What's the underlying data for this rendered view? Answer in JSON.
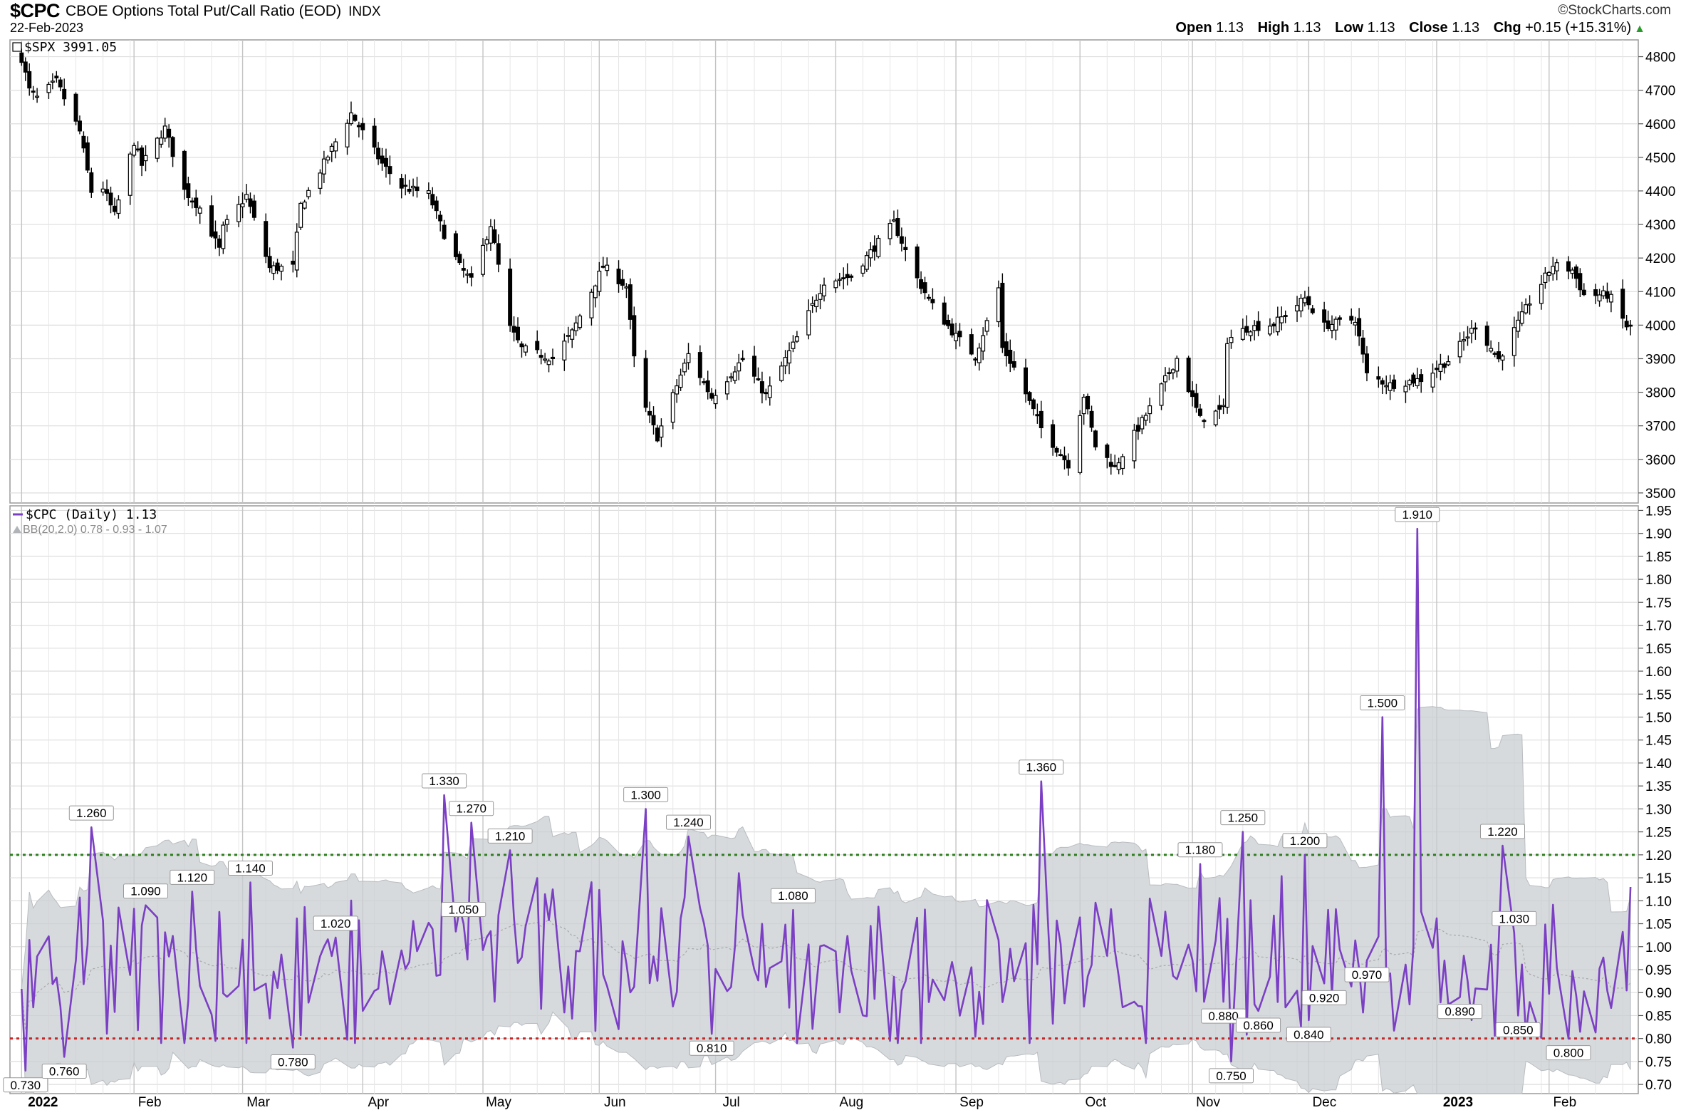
{
  "header": {
    "symbol": "$CPC",
    "description": "CBOE Options Total Put/Call Ratio (EOD)",
    "exchange": "INDX",
    "date": "22-Feb-2023",
    "brand": "©StockCharts.com",
    "ohlc": {
      "open_label": "Open",
      "open": "1.13",
      "high_label": "High",
      "high": "1.13",
      "low_label": "Low",
      "low": "1.13",
      "close_label": "Close",
      "close": "1.13",
      "chg_label": "Chg",
      "chg": "+0.15 (+15.31%)",
      "chg_arrow": "▲"
    }
  },
  "chart_data": [
    {
      "type": "candlestick",
      "legend": "$SPX 3991.05",
      "ylim": [
        3470,
        4850
      ],
      "yticks": [
        3500,
        3600,
        3700,
        3800,
        3900,
        4000,
        4100,
        4200,
        4300,
        4400,
        4500,
        4600,
        4700,
        4800
      ],
      "ytick_labels": [
        "3500",
        "3600",
        "3700",
        "3800",
        "3900",
        "4000",
        "4100",
        "4200",
        "4300",
        "4400",
        "4500",
        "4600",
        "4700",
        "4800"
      ],
      "close_anchors": [
        [
          "2022-01-03",
          4796
        ],
        [
          "2022-01-05",
          4700
        ],
        [
          "2022-01-07",
          4677
        ],
        [
          "2022-01-12",
          4726
        ],
        [
          "2022-01-18",
          4577
        ],
        [
          "2022-01-21",
          4398
        ],
        [
          "2022-01-24",
          4410
        ],
        [
          "2022-01-27",
          4327
        ],
        [
          "2022-02-01",
          4546
        ],
        [
          "2022-02-03",
          4477
        ],
        [
          "2022-02-09",
          4587
        ],
        [
          "2022-02-14",
          4401
        ],
        [
          "2022-02-18",
          4349
        ],
        [
          "2022-02-23",
          4225
        ],
        [
          "2022-02-24",
          4288
        ],
        [
          "2022-03-02",
          4386
        ],
        [
          "2022-03-08",
          4170
        ],
        [
          "2022-03-14",
          4173
        ],
        [
          "2022-03-16",
          4357
        ],
        [
          "2022-03-21",
          4461
        ],
        [
          "2022-03-29",
          4631
        ],
        [
          "2022-04-06",
          4481
        ],
        [
          "2022-04-11",
          4412
        ],
        [
          "2022-04-18",
          4391
        ],
        [
          "2022-04-22",
          4271
        ],
        [
          "2022-04-26",
          4175
        ],
        [
          "2022-04-29",
          4131
        ],
        [
          "2022-05-04",
          4300
        ],
        [
          "2022-05-09",
          3991
        ],
        [
          "2022-05-12",
          3930
        ],
        [
          "2022-05-20",
          3901
        ],
        [
          "2022-05-25",
          3978
        ],
        [
          "2022-06-02",
          4176
        ],
        [
          "2022-06-08",
          4115
        ],
        [
          "2022-06-10",
          3900
        ],
        [
          "2022-06-13",
          3750
        ],
        [
          "2022-06-16",
          3667
        ],
        [
          "2022-06-24",
          3912
        ],
        [
          "2022-06-30",
          3785
        ],
        [
          "2022-07-08",
          3899
        ],
        [
          "2022-07-14",
          3790
        ],
        [
          "2022-07-22",
          3962
        ],
        [
          "2022-07-29",
          4130
        ],
        [
          "2022-08-05",
          4145
        ],
        [
          "2022-08-16",
          4305
        ],
        [
          "2022-08-22",
          4138
        ],
        [
          "2022-08-26",
          4058
        ],
        [
          "2022-09-01",
          3967
        ],
        [
          "2022-09-06",
          3908
        ],
        [
          "2022-09-12",
          4110
        ],
        [
          "2022-09-13",
          3932
        ],
        [
          "2022-09-16",
          3873
        ],
        [
          "2022-09-23",
          3693
        ],
        [
          "2022-09-30",
          3586
        ],
        [
          "2022-10-04",
          3791
        ],
        [
          "2022-10-07",
          3640
        ],
        [
          "2022-10-12",
          3577
        ],
        [
          "2022-10-21",
          3752
        ],
        [
          "2022-10-28",
          3901
        ],
        [
          "2022-11-03",
          3720
        ],
        [
          "2022-11-09",
          3749
        ],
        [
          "2022-11-10",
          3956
        ],
        [
          "2022-11-15",
          3991
        ],
        [
          "2022-11-22",
          4003
        ],
        [
          "2022-11-30",
          4080
        ],
        [
          "2022-12-05",
          3998
        ],
        [
          "2022-12-13",
          4019
        ],
        [
          "2022-12-16",
          3852
        ],
        [
          "2022-12-22",
          3822
        ],
        [
          "2022-12-30",
          3839
        ],
        [
          "2023-01-06",
          3895
        ],
        [
          "2023-01-13",
          3999
        ],
        [
          "2023-01-19",
          3898
        ],
        [
          "2023-01-27",
          4070
        ],
        [
          "2023-02-02",
          4179
        ],
        [
          "2023-02-07",
          4164
        ],
        [
          "2023-02-10",
          4090
        ],
        [
          "2023-02-16",
          4090
        ],
        [
          "2023-02-17",
          4079
        ],
        [
          "2023-02-21",
          3997
        ],
        [
          "2023-02-22",
          3991
        ]
      ]
    },
    {
      "type": "line",
      "legend": "$CPC (Daily) 1.13",
      "bb_legend": "BB(20,2.0) 0.78 - 0.93 - 1.07",
      "ylim": [
        0.68,
        1.96
      ],
      "yticks": [
        0.7,
        0.75,
        0.8,
        0.85,
        0.9,
        0.95,
        1.0,
        1.05,
        1.1,
        1.15,
        1.2,
        1.25,
        1.3,
        1.35,
        1.4,
        1.45,
        1.5,
        1.55,
        1.6,
        1.65,
        1.7,
        1.75,
        1.8,
        1.85,
        1.9,
        1.95
      ],
      "ytick_labels": [
        "0.70",
        "0.75",
        "0.80",
        "0.85",
        "0.90",
        "0.95",
        "1.00",
        "1.05",
        "1.10",
        "1.15",
        "1.20",
        "1.25",
        "1.30",
        "1.35",
        "1.40",
        "1.45",
        "1.50",
        "1.55",
        "1.60",
        "1.65",
        "1.70",
        "1.75",
        "1.80",
        "1.85",
        "1.90",
        "1.95"
      ],
      "reference_lines": [
        {
          "y": 1.2,
          "color": "#2e7d1e"
        },
        {
          "y": 0.8,
          "color": "#c62828"
        }
      ],
      "peak_anchors": [
        [
          "2022-01-04",
          0.73
        ],
        [
          "2022-01-14",
          0.76
        ],
        [
          "2022-01-21",
          1.26
        ],
        [
          "2022-02-04",
          1.09
        ],
        [
          "2022-02-16",
          1.12
        ],
        [
          "2022-03-03",
          1.14
        ],
        [
          "2022-03-14",
          0.78
        ],
        [
          "2022-03-25",
          1.02
        ],
        [
          "2022-04-22",
          1.33
        ],
        [
          "2022-04-27",
          1.05
        ],
        [
          "2022-04-29",
          1.27
        ],
        [
          "2022-05-09",
          1.21
        ],
        [
          "2022-06-13",
          1.3
        ],
        [
          "2022-06-24",
          1.24
        ],
        [
          "2022-06-30",
          0.81
        ],
        [
          "2022-07-21",
          1.08
        ],
        [
          "2022-09-23",
          1.36
        ],
        [
          "2022-11-03",
          1.18
        ],
        [
          "2022-11-09",
          0.88
        ],
        [
          "2022-11-14",
          1.25
        ],
        [
          "2022-11-11",
          0.75
        ],
        [
          "2022-11-18",
          0.86
        ],
        [
          "2022-11-30",
          1.2
        ],
        [
          "2022-12-01",
          0.84
        ],
        [
          "2022-12-05",
          0.92
        ],
        [
          "2022-12-16",
          0.97
        ],
        [
          "2022-12-20",
          1.5
        ],
        [
          "2022-12-29",
          1.91
        ],
        [
          "2023-01-09",
          0.89
        ],
        [
          "2023-01-20",
          1.22
        ],
        [
          "2023-01-23",
          1.03
        ],
        [
          "2023-01-24",
          0.85
        ],
        [
          "2023-02-06",
          0.8
        ],
        [
          "2023-02-22",
          1.13
        ]
      ],
      "data_labels": [
        {
          "date": "2022-01-04",
          "value": "0.730"
        },
        {
          "date": "2022-01-14",
          "value": "0.760"
        },
        {
          "date": "2022-01-21",
          "value": "1.260"
        },
        {
          "date": "2022-02-04",
          "value": "1.090"
        },
        {
          "date": "2022-02-16",
          "value": "1.120"
        },
        {
          "date": "2022-03-03",
          "value": "1.140"
        },
        {
          "date": "2022-03-14",
          "value": "0.780"
        },
        {
          "date": "2022-03-25",
          "value": "1.020"
        },
        {
          "date": "2022-04-22",
          "value": "1.330"
        },
        {
          "date": "2022-04-27",
          "value": "1.050"
        },
        {
          "date": "2022-04-29",
          "value": "1.270"
        },
        {
          "date": "2022-05-09",
          "value": "1.210"
        },
        {
          "date": "2022-06-13",
          "value": "1.300"
        },
        {
          "date": "2022-06-24",
          "value": "1.240"
        },
        {
          "date": "2022-06-30",
          "value": "0.810"
        },
        {
          "date": "2022-07-21",
          "value": "1.080"
        },
        {
          "date": "2022-09-23",
          "value": "1.360"
        },
        {
          "date": "2022-11-03",
          "value": "1.180"
        },
        {
          "date": "2022-11-09",
          "value": "0.880"
        },
        {
          "date": "2022-11-14",
          "value": "1.250"
        },
        {
          "date": "2022-11-11",
          "value": "0.750"
        },
        {
          "date": "2022-11-18",
          "value": "0.860"
        },
        {
          "date": "2022-11-30",
          "value": "1.200"
        },
        {
          "date": "2022-12-01",
          "value": "0.840"
        },
        {
          "date": "2022-12-05",
          "value": "0.920"
        },
        {
          "date": "2022-12-16",
          "value": "0.970"
        },
        {
          "date": "2022-12-20",
          "value": "1.500"
        },
        {
          "date": "2022-12-29",
          "value": "1.910"
        },
        {
          "date": "2023-01-09",
          "value": "0.890"
        },
        {
          "date": "2023-01-20",
          "value": "1.220"
        },
        {
          "date": "2023-01-23",
          "value": "1.030"
        },
        {
          "date": "2023-01-24",
          "value": "0.850"
        },
        {
          "date": "2023-02-06",
          "value": "0.800"
        }
      ],
      "line_color": "#7b3fc4",
      "band_color": "#c9cdd1"
    }
  ],
  "x_axis": {
    "range": [
      "2021-12-31",
      "2023-02-24"
    ],
    "labels": [
      {
        "date": "2022-01-03",
        "text": "2022",
        "bold": true
      },
      {
        "date": "2022-02-01",
        "text": "Feb"
      },
      {
        "date": "2022-03-01",
        "text": "Mar"
      },
      {
        "date": "2022-04-01",
        "text": "Apr"
      },
      {
        "date": "2022-05-02",
        "text": "May"
      },
      {
        "date": "2022-06-01",
        "text": "Jun"
      },
      {
        "date": "2022-07-01",
        "text": "Jul"
      },
      {
        "date": "2022-08-01",
        "text": "Aug"
      },
      {
        "date": "2022-09-01",
        "text": "Sep"
      },
      {
        "date": "2022-10-03",
        "text": "Oct"
      },
      {
        "date": "2022-11-01",
        "text": "Nov"
      },
      {
        "date": "2022-12-01",
        "text": "Dec"
      },
      {
        "date": "2023-01-03",
        "text": "2023",
        "bold": true
      },
      {
        "date": "2023-02-01",
        "text": "Feb"
      }
    ]
  }
}
